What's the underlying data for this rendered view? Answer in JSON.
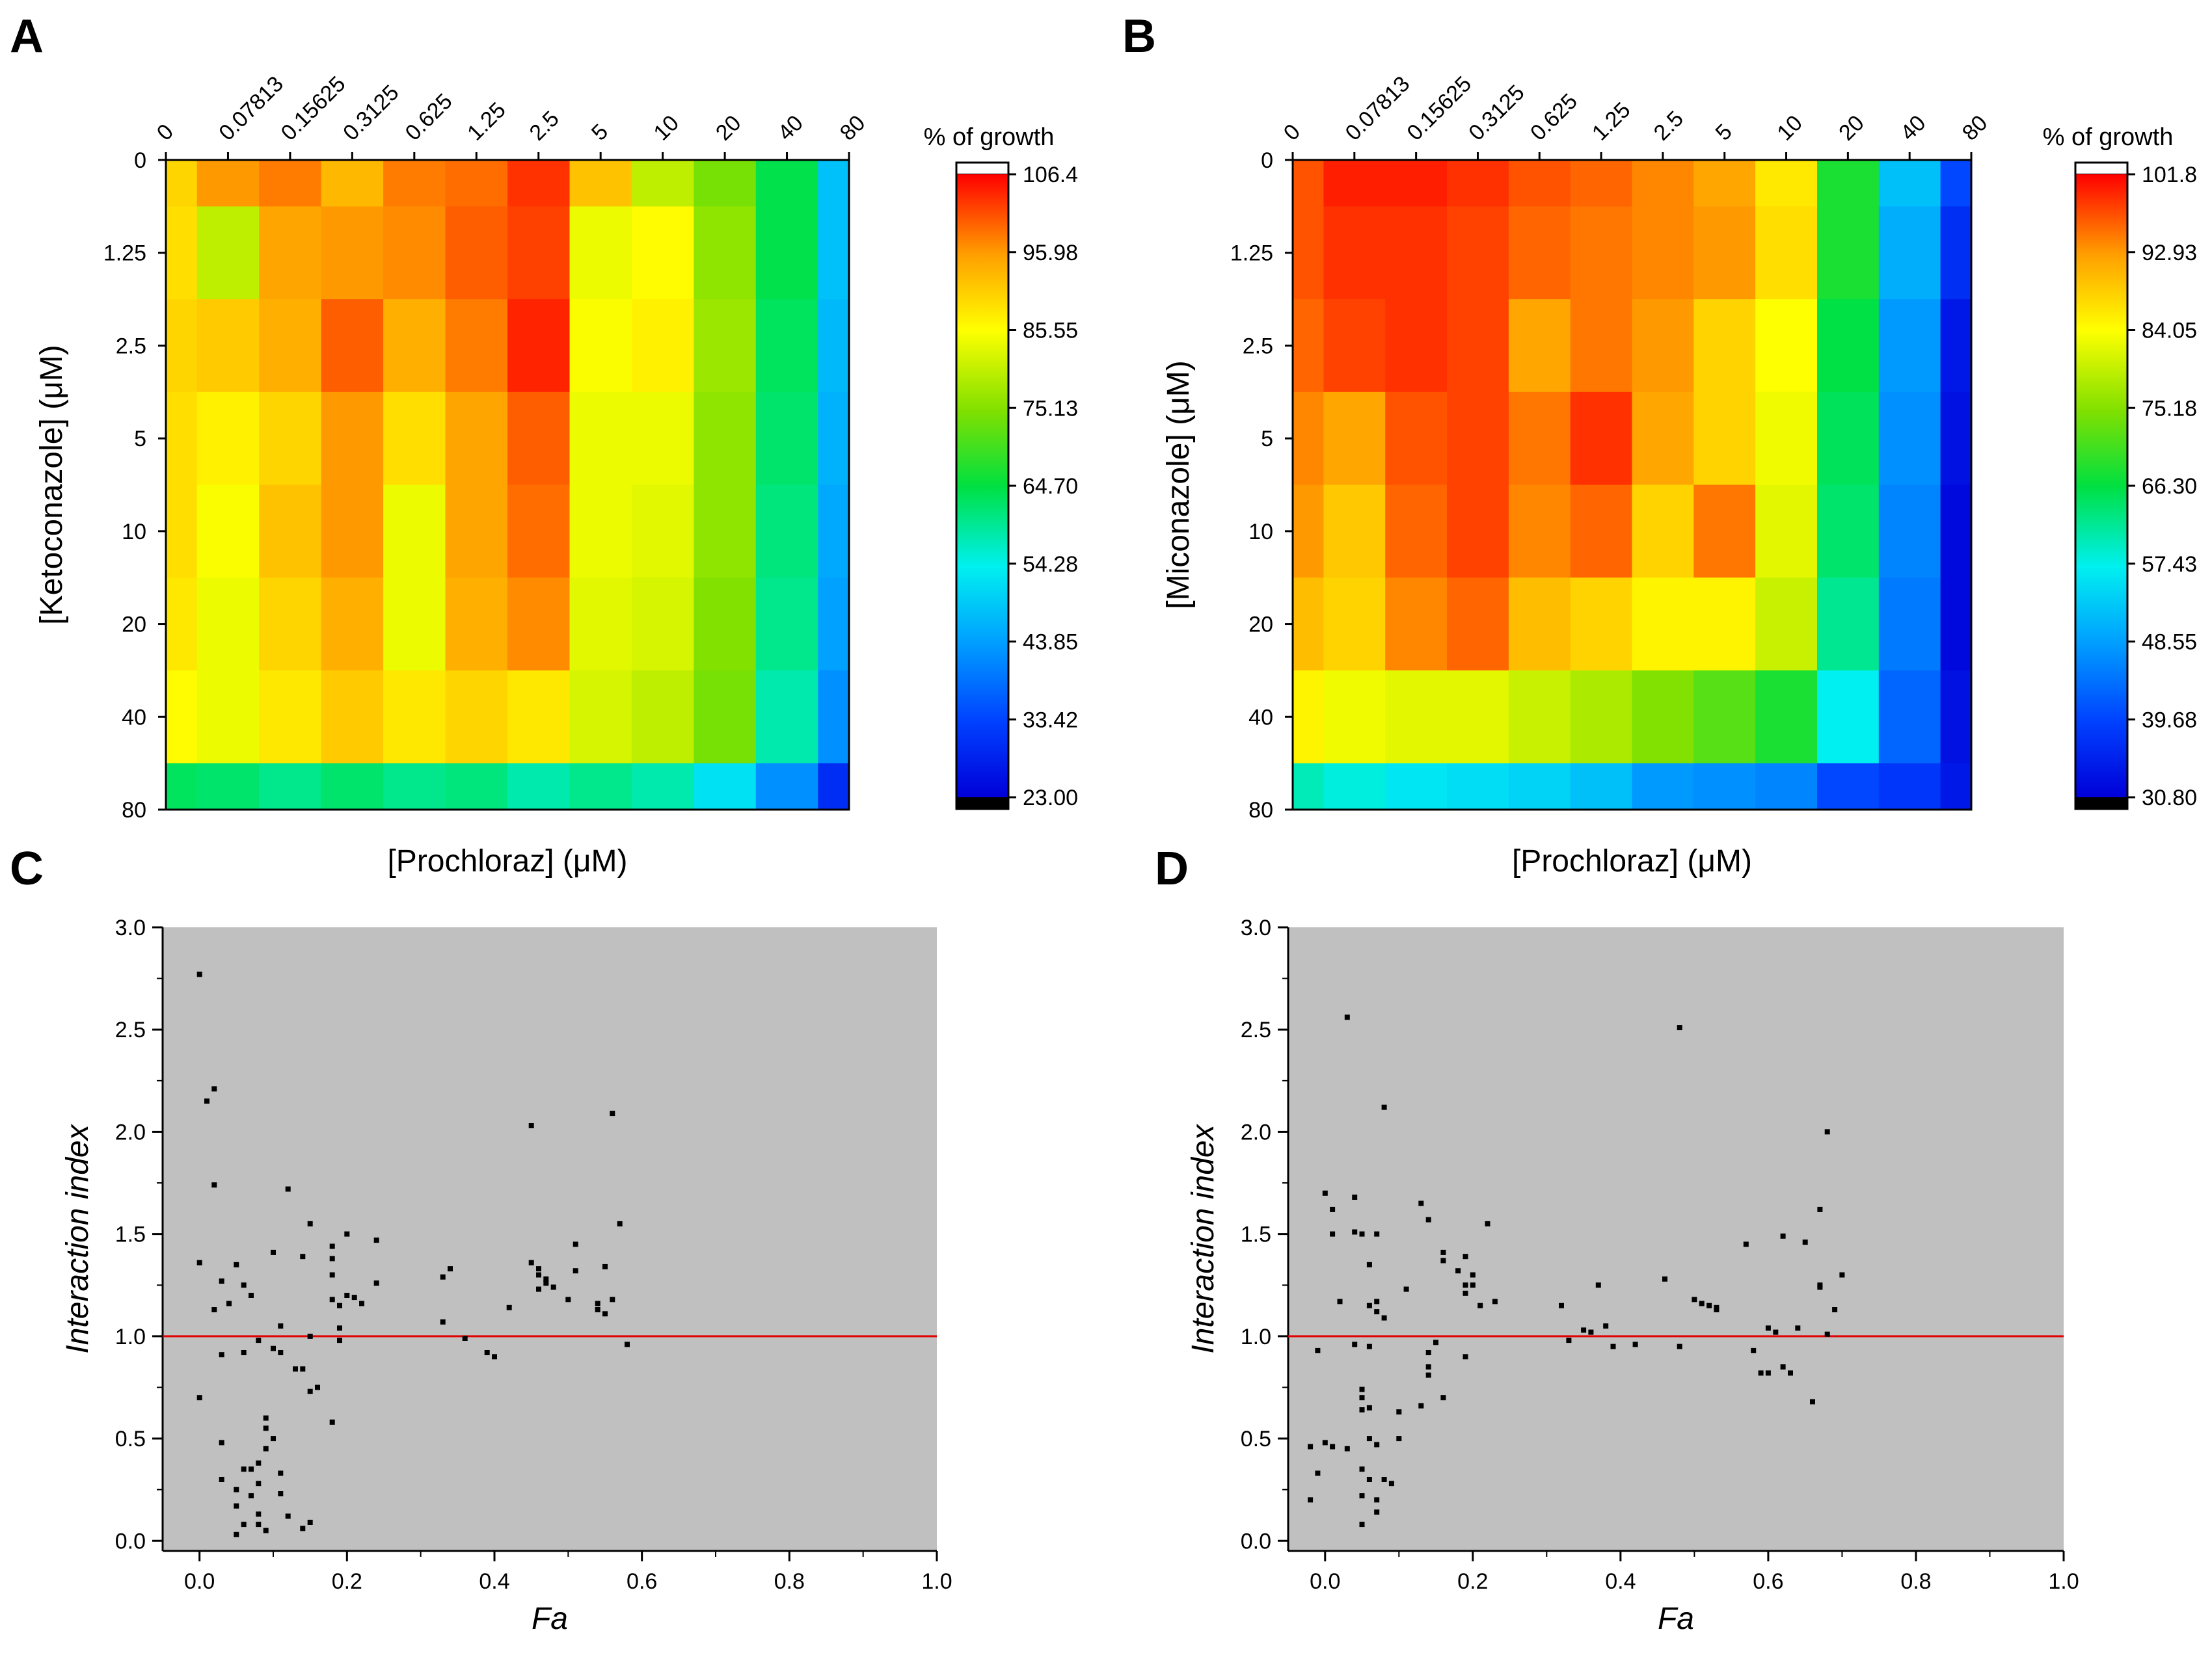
{
  "chart_data": [
    {
      "panel": "A",
      "type": "heatmap",
      "x_ticks": [
        "0",
        "0.07813",
        "0.15625",
        "0.3125",
        "0.625",
        "1.25",
        "2.5",
        "5",
        "10",
        "20",
        "40",
        "80"
      ],
      "y_ticks": [
        "0",
        "1.25",
        "2.5",
        "5",
        "10",
        "20",
        "40",
        "80"
      ],
      "xlabel": "[Prochloraz] (μM)",
      "ylabel": "[Ketoconazole] (μM)",
      "colorbar_title": "% of growth",
      "colorbar_ticks": [
        "106.4",
        "95.98",
        "85.55",
        "75.13",
        "64.70",
        "54.28",
        "43.85",
        "33.42",
        "23.00"
      ],
      "colorbar_range": [
        23.0,
        106.4
      ],
      "values": [
        [
          90,
          96,
          98,
          93,
          98,
          99,
          103,
          92,
          80,
          74,
          64,
          48
        ],
        [
          89,
          80,
          95,
          96,
          97,
          100,
          102,
          84,
          86,
          76,
          64,
          48
        ],
        [
          90,
          91,
          94,
          100,
          94,
          98,
          104,
          85,
          87,
          77,
          63,
          47
        ],
        [
          89,
          87,
          90,
          96,
          89,
          95,
          100,
          84,
          84,
          76,
          62,
          46
        ],
        [
          89,
          85,
          92,
          96,
          84,
          95,
          99,
          84,
          83,
          76,
          61,
          45
        ],
        [
          88,
          84,
          90,
          94,
          84,
          94,
          97,
          83,
          82,
          75,
          60,
          44
        ],
        [
          86,
          84,
          88,
          91,
          88,
          90,
          88,
          82,
          80,
          74,
          58,
          42
        ],
        [
          63,
          62,
          60,
          62,
          60,
          61,
          58,
          60,
          58,
          52,
          42,
          30
        ]
      ]
    },
    {
      "panel": "B",
      "type": "heatmap",
      "x_ticks": [
        "0",
        "0.07813",
        "0.15625",
        "0.3125",
        "0.625",
        "1.25",
        "2.5",
        "5",
        "10",
        "20",
        "40",
        "80"
      ],
      "y_ticks": [
        "0",
        "1.25",
        "2.5",
        "5",
        "10",
        "20",
        "40",
        "80"
      ],
      "xlabel": "[Prochloraz] (μM)",
      "ylabel": "[Miconazole] (μM)",
      "colorbar_title": "% of growth",
      "colorbar_ticks": [
        "101.8",
        "92.93",
        "84.05",
        "75.18",
        "66.30",
        "57.43",
        "48.55",
        "39.68",
        "30.80"
      ],
      "colorbar_range": [
        30.8,
        101.8
      ],
      "values": [
        [
          97,
          100,
          100,
          99,
          97,
          96,
          94,
          92,
          86,
          68,
          52,
          40
        ],
        [
          97,
          99,
          99,
          98,
          96,
          95,
          94,
          93,
          87,
          68,
          50,
          37
        ],
        [
          96,
          98,
          99,
          98,
          92,
          95,
          93,
          88,
          84,
          66,
          48,
          34
        ],
        [
          94,
          92,
          97,
          98,
          95,
          99,
          92,
          88,
          83,
          65,
          47,
          33
        ],
        [
          93,
          89,
          96,
          98,
          94,
          96,
          88,
          95,
          82,
          64,
          46,
          32
        ],
        [
          90,
          88,
          94,
          96,
          90,
          88,
          85,
          85,
          80,
          62,
          45,
          32
        ],
        [
          85,
          83,
          82,
          82,
          80,
          78,
          75,
          72,
          68,
          57,
          43,
          33
        ],
        [
          60,
          58,
          56,
          55,
          54,
          52,
          48,
          47,
          46,
          40,
          38,
          34
        ]
      ]
    },
    {
      "panel": "C",
      "type": "scatter",
      "xlabel": "Fa",
      "ylabel": "Interaction index",
      "xlim": [
        -0.05,
        1.0
      ],
      "ylim": [
        -0.05,
        3.0
      ],
      "x_ticks": [
        "0.0",
        "0.2",
        "0.4",
        "0.6",
        "0.8",
        "1.0"
      ],
      "y_ticks": [
        "0.0",
        "0.5",
        "1.0",
        "1.5",
        "2.0",
        "2.5",
        "3.0"
      ],
      "reference_line": {
        "y": 1.0,
        "color": "#e00000"
      },
      "background": "#c0c0c0",
      "points": [
        [
          0.0,
          2.77
        ],
        [
          0.01,
          2.15
        ],
        [
          0.02,
          2.21
        ],
        [
          0.02,
          1.74
        ],
        [
          0.0,
          1.36
        ],
        [
          0.02,
          1.13
        ],
        [
          0.0,
          0.7
        ],
        [
          0.03,
          1.27
        ],
        [
          0.04,
          1.16
        ],
        [
          0.03,
          0.91
        ],
        [
          0.03,
          0.48
        ],
        [
          0.03,
          0.3
        ],
        [
          0.05,
          1.35
        ],
        [
          0.06,
          1.25
        ],
        [
          0.07,
          1.2
        ],
        [
          0.06,
          0.92
        ],
        [
          0.08,
          0.98
        ],
        [
          0.05,
          0.25
        ],
        [
          0.05,
          0.17
        ],
        [
          0.06,
          0.35
        ],
        [
          0.06,
          0.08
        ],
        [
          0.05,
          0.03
        ],
        [
          0.07,
          0.35
        ],
        [
          0.07,
          0.22
        ],
        [
          0.08,
          0.28
        ],
        [
          0.08,
          0.13
        ],
        [
          0.09,
          0.05
        ],
        [
          0.08,
          0.08
        ],
        [
          0.09,
          0.6
        ],
        [
          0.09,
          0.55
        ],
        [
          0.1,
          0.5
        ],
        [
          0.09,
          0.45
        ],
        [
          0.08,
          0.38
        ],
        [
          0.1,
          1.41
        ],
        [
          0.11,
          1.05
        ],
        [
          0.1,
          0.94
        ],
        [
          0.11,
          0.92
        ],
        [
          0.11,
          0.33
        ],
        [
          0.11,
          0.23
        ],
        [
          0.12,
          1.72
        ],
        [
          0.12,
          0.12
        ],
        [
          0.13,
          0.84
        ],
        [
          0.14,
          0.84
        ],
        [
          0.14,
          0.06
        ],
        [
          0.15,
          0.09
        ],
        [
          0.14,
          1.39
        ],
        [
          0.15,
          1.55
        ],
        [
          0.15,
          1.0
        ],
        [
          0.16,
          0.75
        ],
        [
          0.15,
          0.73
        ],
        [
          0.18,
          1.44
        ],
        [
          0.18,
          1.38
        ],
        [
          0.18,
          1.3
        ],
        [
          0.18,
          1.18
        ],
        [
          0.19,
          1.15
        ],
        [
          0.19,
          1.04
        ],
        [
          0.19,
          0.98
        ],
        [
          0.18,
          0.58
        ],
        [
          0.2,
          1.5
        ],
        [
          0.2,
          1.2
        ],
        [
          0.21,
          1.19
        ],
        [
          0.22,
          1.16
        ],
        [
          0.24,
          1.47
        ],
        [
          0.24,
          1.26
        ],
        [
          0.33,
          1.29
        ],
        [
          0.34,
          1.33
        ],
        [
          0.33,
          1.07
        ],
        [
          0.36,
          0.99
        ],
        [
          0.39,
          0.92
        ],
        [
          0.4,
          0.9
        ],
        [
          0.42,
          1.14
        ],
        [
          0.45,
          2.03
        ],
        [
          0.45,
          1.36
        ],
        [
          0.46,
          1.33
        ],
        [
          0.46,
          1.3
        ],
        [
          0.47,
          1.28
        ],
        [
          0.47,
          1.26
        ],
        [
          0.46,
          1.23
        ],
        [
          0.48,
          1.24
        ],
        [
          0.5,
          1.18
        ],
        [
          0.51,
          1.45
        ],
        [
          0.51,
          1.32
        ],
        [
          0.54,
          1.16
        ],
        [
          0.54,
          1.13
        ],
        [
          0.55,
          1.11
        ],
        [
          0.55,
          1.34
        ],
        [
          0.56,
          2.09
        ],
        [
          0.56,
          1.18
        ],
        [
          0.57,
          1.55
        ],
        [
          0.58,
          0.96
        ]
      ]
    },
    {
      "panel": "D",
      "type": "scatter",
      "xlabel": "Fa",
      "ylabel": "Interaction index",
      "xlim": [
        -0.05,
        1.0
      ],
      "ylim": [
        -0.05,
        3.0
      ],
      "x_ticks": [
        "0.0",
        "0.2",
        "0.4",
        "0.6",
        "0.8",
        "1.0"
      ],
      "y_ticks": [
        "0.0",
        "0.5",
        "1.0",
        "1.5",
        "2.0",
        "2.5",
        "3.0"
      ],
      "reference_line": {
        "y": 1.0,
        "color": "#e00000"
      },
      "background": "#c0c0c0",
      "points": [
        [
          -0.02,
          0.2
        ],
        [
          -0.02,
          0.46
        ],
        [
          -0.01,
          0.93
        ],
        [
          -0.01,
          0.33
        ],
        [
          0.0,
          1.7
        ],
        [
          0.01,
          1.62
        ],
        [
          0.01,
          1.5
        ],
        [
          0.0,
          0.48
        ],
        [
          0.01,
          0.46
        ],
        [
          0.02,
          1.17
        ],
        [
          0.03,
          2.56
        ],
        [
          0.03,
          0.45
        ],
        [
          0.04,
          1.68
        ],
        [
          0.04,
          0.96
        ],
        [
          0.04,
          1.51
        ],
        [
          0.05,
          1.5
        ],
        [
          0.05,
          0.74
        ],
        [
          0.05,
          0.7
        ],
        [
          0.05,
          0.64
        ],
        [
          0.05,
          0.35
        ],
        [
          0.05,
          0.22
        ],
        [
          0.05,
          0.08
        ],
        [
          0.06,
          1.35
        ],
        [
          0.06,
          1.15
        ],
        [
          0.06,
          0.95
        ],
        [
          0.06,
          0.65
        ],
        [
          0.06,
          0.5
        ],
        [
          0.06,
          0.3
        ],
        [
          0.07,
          1.5
        ],
        [
          0.07,
          1.17
        ],
        [
          0.07,
          1.12
        ],
        [
          0.07,
          0.47
        ],
        [
          0.07,
          0.14
        ],
        [
          0.07,
          0.2
        ],
        [
          0.08,
          2.12
        ],
        [
          0.08,
          1.09
        ],
        [
          0.08,
          0.3
        ],
        [
          0.09,
          0.28
        ],
        [
          0.1,
          0.63
        ],
        [
          0.1,
          0.5
        ],
        [
          0.11,
          1.23
        ],
        [
          0.13,
          1.65
        ],
        [
          0.13,
          0.66
        ],
        [
          0.14,
          1.57
        ],
        [
          0.14,
          0.92
        ],
        [
          0.14,
          0.85
        ],
        [
          0.14,
          0.81
        ],
        [
          0.15,
          0.97
        ],
        [
          0.16,
          1.41
        ],
        [
          0.16,
          1.37
        ],
        [
          0.16,
          0.7
        ],
        [
          0.18,
          1.32
        ],
        [
          0.19,
          1.25
        ],
        [
          0.19,
          1.39
        ],
        [
          0.2,
          1.3
        ],
        [
          0.19,
          1.21
        ],
        [
          0.19,
          0.9
        ],
        [
          0.2,
          1.25
        ],
        [
          0.21,
          1.15
        ],
        [
          0.22,
          1.55
        ],
        [
          0.23,
          1.17
        ],
        [
          0.32,
          1.15
        ],
        [
          0.33,
          0.98
        ],
        [
          0.35,
          1.03
        ],
        [
          0.36,
          1.02
        ],
        [
          0.37,
          1.25
        ],
        [
          0.38,
          1.05
        ],
        [
          0.39,
          0.95
        ],
        [
          0.42,
          0.96
        ],
        [
          0.46,
          1.28
        ],
        [
          0.48,
          2.51
        ],
        [
          0.48,
          0.95
        ],
        [
          0.5,
          1.18
        ],
        [
          0.51,
          1.16
        ],
        [
          0.52,
          1.15
        ],
        [
          0.53,
          1.14
        ],
        [
          0.53,
          1.13
        ],
        [
          0.57,
          1.45
        ],
        [
          0.58,
          0.93
        ],
        [
          0.59,
          0.82
        ],
        [
          0.6,
          1.04
        ],
        [
          0.6,
          0.82
        ],
        [
          0.61,
          1.02
        ],
        [
          0.62,
          1.49
        ],
        [
          0.62,
          0.85
        ],
        [
          0.63,
          0.82
        ],
        [
          0.64,
          1.04
        ],
        [
          0.65,
          1.46
        ],
        [
          0.66,
          0.68
        ],
        [
          0.67,
          1.62
        ],
        [
          0.67,
          1.25
        ],
        [
          0.67,
          1.24
        ],
        [
          0.68,
          2.0
        ],
        [
          0.68,
          1.01
        ],
        [
          0.69,
          1.13
        ],
        [
          0.7,
          1.3
        ]
      ]
    }
  ]
}
